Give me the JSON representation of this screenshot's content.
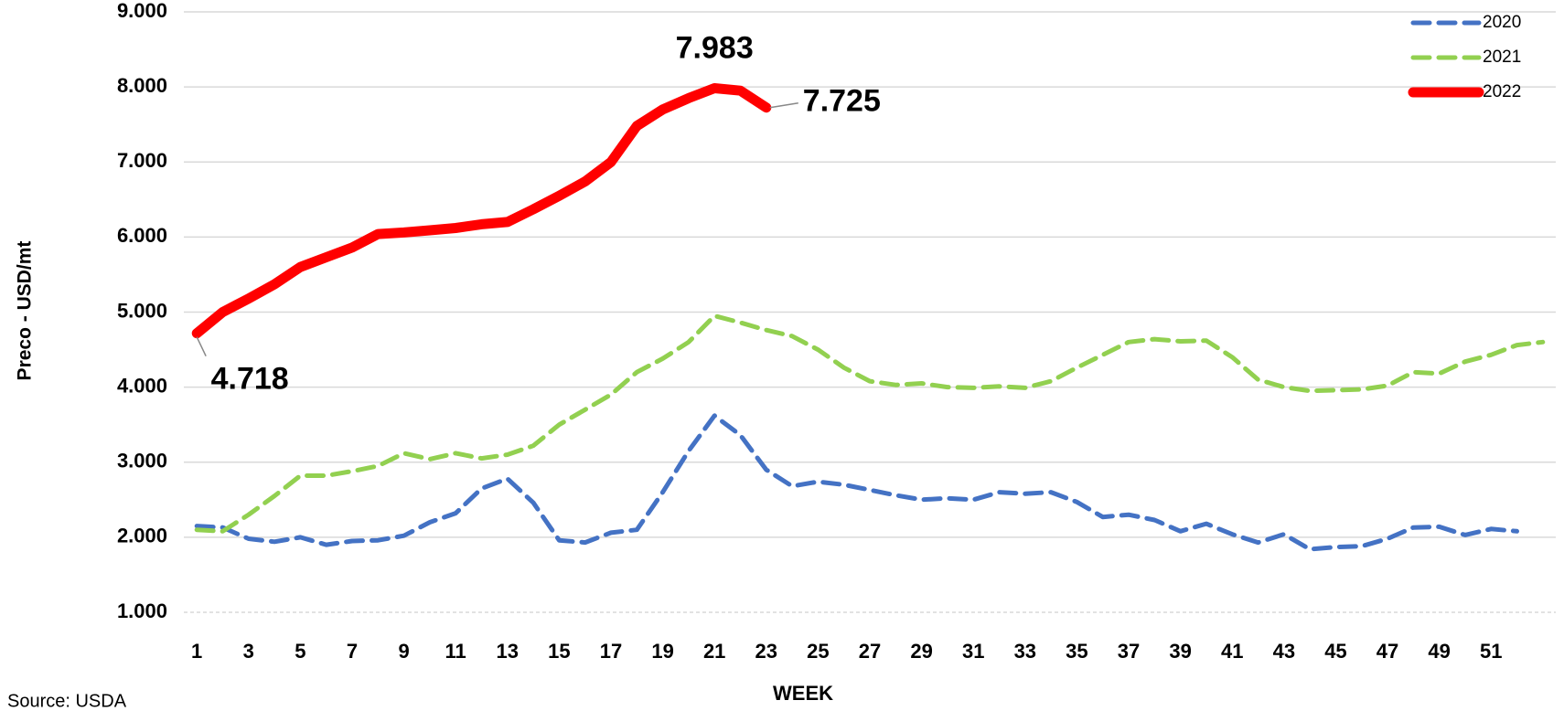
{
  "chart_data": {
    "type": "line",
    "x_label": "WEEK",
    "y_label": "Preco - USD/mt",
    "source": "Source: USDA",
    "x": [
      1,
      2,
      3,
      4,
      5,
      6,
      7,
      8,
      9,
      10,
      11,
      12,
      13,
      14,
      15,
      16,
      17,
      18,
      19,
      20,
      21,
      22,
      23,
      24,
      25,
      26,
      27,
      28,
      29,
      30,
      31,
      32,
      33,
      34,
      35,
      36,
      37,
      38,
      39,
      40,
      41,
      42,
      43,
      44,
      45,
      46,
      47,
      48,
      49,
      50,
      51,
      52,
      53
    ],
    "xlim": [
      0.5,
      53.5
    ],
    "xticks": [
      1,
      3,
      5,
      7,
      9,
      11,
      13,
      15,
      17,
      19,
      21,
      23,
      25,
      27,
      29,
      31,
      33,
      35,
      37,
      39,
      41,
      43,
      45,
      47,
      49,
      51
    ],
    "ylim": [
      1000,
      9000
    ],
    "yticks": [
      {
        "value": 1000,
        "label": "1.000"
      },
      {
        "value": 2000,
        "label": "2.000"
      },
      {
        "value": 3000,
        "label": "3.000"
      },
      {
        "value": 4000,
        "label": "4.000"
      },
      {
        "value": 5000,
        "label": "5.000"
      },
      {
        "value": 6000,
        "label": "6.000"
      },
      {
        "value": 7000,
        "label": "7.000"
      },
      {
        "value": 8000,
        "label": "8.000"
      },
      {
        "value": 9000,
        "label": "9.000"
      }
    ],
    "grid": true,
    "legend": "top-right",
    "series": [
      {
        "name": "2020",
        "color": "#4472c4",
        "style": "dashed",
        "values": [
          2150,
          2130,
          1980,
          1940,
          2000,
          1900,
          1950,
          1960,
          2020,
          2200,
          2320,
          2650,
          2780,
          2460,
          1960,
          1930,
          2060,
          2100,
          2600,
          3150,
          3620,
          3360,
          2900,
          2680,
          2740,
          2700,
          2630,
          2560,
          2500,
          2520,
          2500,
          2600,
          2580,
          2600,
          2470,
          2270,
          2300,
          2230,
          2080,
          2180,
          2040,
          1930,
          2040,
          1840,
          1870,
          1880,
          1980,
          2130,
          2140,
          2030,
          2110,
          2080,
          null
        ]
      },
      {
        "name": "2021",
        "color": "#92d050",
        "style": "dashed",
        "values": [
          2100,
          2080,
          2300,
          2550,
          2820,
          2820,
          2880,
          2950,
          3120,
          3040,
          3120,
          3050,
          3100,
          3220,
          3500,
          3700,
          3900,
          4200,
          4380,
          4600,
          4950,
          4860,
          4760,
          4680,
          4500,
          4260,
          4080,
          4030,
          4050,
          4000,
          3990,
          4010,
          3990,
          4080,
          4260,
          4430,
          4600,
          4640,
          4610,
          4620,
          4400,
          4100,
          4000,
          3950,
          3960,
          3970,
          4020,
          4200,
          4180,
          4340,
          4430,
          4560,
          4600
        ]
      },
      {
        "name": "2022",
        "color": "#ff0000",
        "style": "solid",
        "values": [
          4718,
          5000,
          5180,
          5370,
          5600,
          5730,
          5860,
          6040,
          6060,
          6090,
          6120,
          6170,
          6200,
          6370,
          6550,
          6740,
          7000,
          7480,
          7700,
          7850,
          7983,
          7950,
          7725,
          null,
          null,
          null,
          null,
          null,
          null,
          null,
          null,
          null,
          null,
          null,
          null,
          null,
          null,
          null,
          null,
          null,
          null,
          null,
          null,
          null,
          null,
          null,
          null,
          null,
          null,
          null,
          null,
          null,
          null
        ],
        "value_labels": [
          "4.718",
          null,
          null,
          null,
          null,
          null,
          null,
          null,
          null,
          null,
          null,
          null,
          null,
          null,
          null,
          null,
          null,
          null,
          null,
          null,
          "7.983",
          null,
          "7.725",
          null,
          null,
          null,
          null,
          null,
          null,
          null,
          null,
          null,
          null,
          null,
          null,
          null,
          null,
          null,
          null,
          null,
          null,
          null,
          null,
          null,
          null,
          null,
          null,
          null,
          null,
          null,
          null,
          null,
          null
        ]
      }
    ]
  }
}
